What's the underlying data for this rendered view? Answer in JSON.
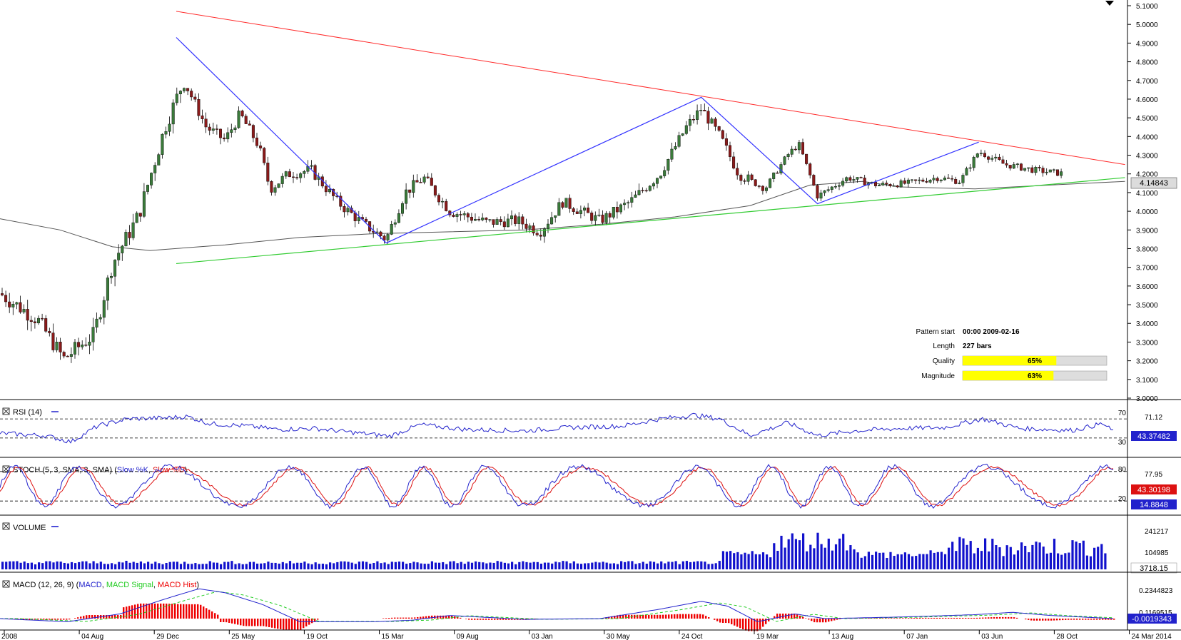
{
  "chart_data": {
    "type": "candlestick",
    "main": {
      "y_ticks": [
        "5.1000",
        "5.0000",
        "4.9000",
        "4.8000",
        "4.7000",
        "4.6000",
        "4.5000",
        "4.4000",
        "4.3000",
        "4.2000",
        "4.1000",
        "4.0000",
        "3.9000",
        "3.8000",
        "3.7000",
        "3.6000",
        "3.5000",
        "3.4000",
        "3.3000",
        "3.2000",
        "3.1000",
        "3.0000"
      ],
      "ylim": [
        3.0,
        5.1
      ],
      "current_price": "4.14843",
      "resistance_line": [
        [
          2.35,
          5.07
        ],
        [
          15.0,
          4.25
        ]
      ],
      "support_line": [
        [
          2.35,
          3.72
        ],
        [
          15.0,
          4.18
        ]
      ],
      "zigzag": [
        [
          2.35,
          4.93
        ],
        [
          5.15,
          3.83
        ],
        [
          9.35,
          4.61
        ],
        [
          10.9,
          4.04
        ],
        [
          13.05,
          4.37
        ]
      ],
      "moving_average": [
        [
          0,
          3.96
        ],
        [
          0.8,
          3.9
        ],
        [
          1.5,
          3.81
        ],
        [
          2.0,
          3.79
        ],
        [
          3.0,
          3.82
        ],
        [
          4.0,
          3.86
        ],
        [
          5.0,
          3.88
        ],
        [
          6.0,
          3.89
        ],
        [
          7.0,
          3.9
        ],
        [
          8.0,
          3.93
        ],
        [
          9.0,
          3.97
        ],
        [
          10.0,
          4.03
        ],
        [
          10.8,
          4.14
        ],
        [
          11.5,
          4.16
        ],
        [
          12.0,
          4.13
        ],
        [
          13.0,
          4.12
        ],
        [
          14.0,
          4.14
        ],
        [
          15.0,
          4.16
        ]
      ],
      "pattern_info": {
        "pattern_start_label": "Pattern start",
        "pattern_start_value": "00:00 2009-02-16",
        "length_label": "Length",
        "length_value": "227 bars",
        "quality_label": "Quality",
        "quality_value": "65%",
        "quality": 0.65,
        "magnitude_label": "Magnitude",
        "magnitude_value": "63%",
        "magnitude": 0.63
      }
    },
    "x_labels": [
      "2008",
      "04 Aug",
      "29 Dec",
      "25 May",
      "19 Oct",
      "15 Mar",
      "09 Aug",
      "03 Jan",
      "30 May",
      "24 Oct",
      "19 Mar",
      "13 Aug",
      "07 Jan",
      "03 Jun",
      "28 Oct",
      "24 Mar 2014"
    ],
    "rsi": {
      "title": "RSI (14)",
      "levels": [
        "70",
        "30"
      ],
      "right_labels": [
        "71.12"
      ],
      "value": "43.37482"
    },
    "stoch": {
      "title_prefix": "STOCH (5, 3, SMA, 3, SMA) (",
      "series1": "Slow %K",
      "series2": "Slow %D",
      "title_suffix": ")",
      "levels": [
        "80",
        "20"
      ],
      "right_labels": [
        "77.95"
      ],
      "value_d": "43.30198",
      "value_k": "14.8848"
    },
    "volume": {
      "title": "VOLUME",
      "right_labels": [
        "241217",
        "104985"
      ],
      "value": "3718.15"
    },
    "macd": {
      "title_prefix": "MACD (12, 26, 9) (",
      "series1": "MACD",
      "sep1": ", ",
      "series2": "MACD Signal",
      "sep2": ", ",
      "series3": "MACD Hist",
      "title_suffix": ")",
      "right_labels": [
        "0.2344823",
        "0.1169515"
      ],
      "value": "-0.0019343"
    },
    "colors": {
      "up": "#3a7a3a",
      "down": "#8a1a1a",
      "ma": "#555555",
      "resistance": "#ff2a2a",
      "support": "#33cc33",
      "zigzag": "#3333ff",
      "rsi": "#2222cc",
      "stoch_k": "#2222cc",
      "stoch_d": "#dd1111",
      "volume": "#1111cc",
      "macd": "#2222cc",
      "macd_signal": "#22cc22",
      "macd_hist": "#ee0000",
      "quality_fill": "#ffff00"
    }
  }
}
